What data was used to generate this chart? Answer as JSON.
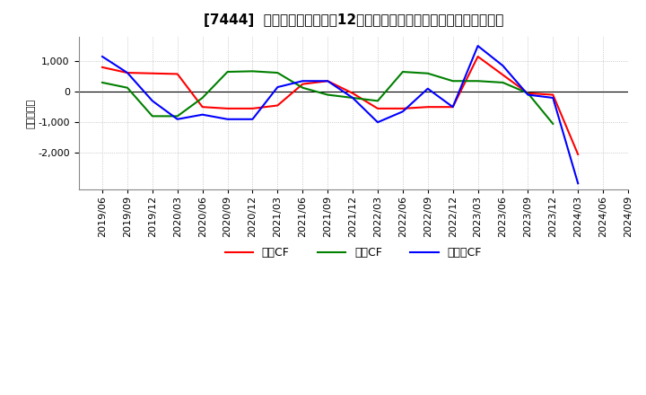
{
  "title": "[7444]  キャッシュフローの12か月移動合計の対前年同期増減額の推移",
  "ylabel": "（百万円）",
  "background_color": "#ffffff",
  "grid_color": "#aaaaaa",
  "dates": [
    "2019/06",
    "2019/09",
    "2019/12",
    "2020/03",
    "2020/06",
    "2020/09",
    "2020/12",
    "2021/03",
    "2021/06",
    "2021/09",
    "2021/12",
    "2022/03",
    "2022/06",
    "2022/09",
    "2022/12",
    "2023/03",
    "2023/06",
    "2023/09",
    "2023/12",
    "2024/03",
    "2024/06",
    "2024/09"
  ],
  "eigyo_cf": [
    800,
    620,
    600,
    580,
    -500,
    -550,
    -550,
    -450,
    250,
    350,
    -50,
    -550,
    -550,
    -500,
    -500,
    1150,
    550,
    -50,
    -100,
    -2050,
    null,
    null
  ],
  "toshi_cf": [
    300,
    130,
    -800,
    -800,
    -200,
    650,
    670,
    620,
    130,
    -100,
    -200,
    -300,
    650,
    600,
    350,
    350,
    300,
    -50,
    -1050,
    null,
    null,
    null
  ],
  "free_cf": [
    1150,
    620,
    -300,
    -900,
    -750,
    -900,
    -900,
    150,
    350,
    350,
    -200,
    -1000,
    -650,
    100,
    -500,
    1500,
    850,
    -100,
    -200,
    -3000,
    null,
    null
  ],
  "eigyo_color": "#ff0000",
  "toshi_color": "#008000",
  "free_color": "#0000ff",
  "legend_labels": [
    "営業CF",
    "投資CF",
    "フリーCF"
  ],
  "ylim": [
    -3200,
    1800
  ],
  "yticks": [
    -2000,
    -1000,
    0,
    1000
  ],
  "title_fontsize": 11,
  "axis_fontsize": 8,
  "legend_fontsize": 9
}
